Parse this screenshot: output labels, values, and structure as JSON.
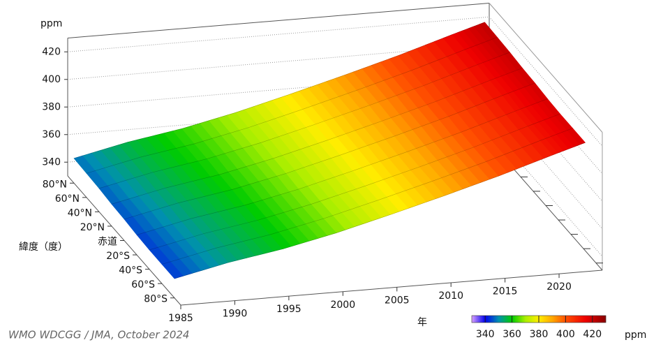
{
  "chart_data": {
    "type": "surface",
    "zlabel": "ppm",
    "xlabel": "年",
    "ylabel": "緯度（度）",
    "credit": "WMO WDCGG / JMA, October 2024",
    "x": [
      1985,
      1990,
      1995,
      2000,
      2005,
      2010,
      2015,
      2020,
      2023
    ],
    "y": [
      80,
      60,
      40,
      20,
      0,
      -20,
      -40,
      -60,
      -80
    ],
    "z": [
      [
        348,
        356.5,
        363,
        371.5,
        381.5,
        392,
        403,
        415,
        422
      ],
      [
        347.5,
        356,
        362.5,
        371,
        381,
        391.5,
        402.5,
        414.5,
        421.5
      ],
      [
        347,
        355.5,
        362,
        370.5,
        380.5,
        391,
        402,
        414,
        421
      ],
      [
        346,
        354.5,
        361,
        369.5,
        379.5,
        390,
        401,
        413,
        420
      ],
      [
        345.5,
        354,
        360.5,
        369,
        379,
        389.5,
        400.5,
        412.5,
        419.5
      ],
      [
        344.5,
        353,
        359.5,
        368,
        378,
        388.5,
        399.5,
        411.5,
        418.5
      ],
      [
        344,
        352.5,
        359,
        367.5,
        377.5,
        388,
        399,
        411,
        418
      ],
      [
        344,
        352.5,
        359,
        367.5,
        377.5,
        388,
        399,
        411,
        418
      ],
      [
        344,
        352.5,
        359,
        367.5,
        377.5,
        388,
        399,
        411,
        418
      ]
    ],
    "xlim": [
      1985,
      2024
    ],
    "xticks": [
      1985,
      1990,
      1995,
      2000,
      2005,
      2010,
      2015,
      2020
    ],
    "ylim": [
      90,
      -90
    ],
    "yticks": [
      {
        "value": 80,
        "label": "80°N"
      },
      {
        "value": 60,
        "label": "60°N"
      },
      {
        "value": 40,
        "label": "40°N"
      },
      {
        "value": 20,
        "label": "20°N"
      },
      {
        "value": 0,
        "label": "赤道"
      },
      {
        "value": -20,
        "label": "20°S"
      },
      {
        "value": -40,
        "label": "40°S"
      },
      {
        "value": -60,
        "label": "60°S"
      },
      {
        "value": -80,
        "label": "80°S"
      }
    ],
    "zlim": [
      330,
      430
    ],
    "zticks": [
      340,
      360,
      380,
      400,
      420
    ],
    "grid": true,
    "colorbar": {
      "label": "ppm",
      "lim": [
        330,
        430
      ],
      "ticks": [
        340,
        360,
        380,
        400,
        420
      ],
      "colormap": [
        {
          "value": 330,
          "color": "#d9a0ff"
        },
        {
          "value": 340,
          "color": "#0000ee"
        },
        {
          "value": 350,
          "color": "#0090b0"
        },
        {
          "value": 360,
          "color": "#00cc00"
        },
        {
          "value": 370,
          "color": "#aaee00"
        },
        {
          "value": 380,
          "color": "#ffee00"
        },
        {
          "value": 390,
          "color": "#ffa800"
        },
        {
          "value": 400,
          "color": "#ff5000"
        },
        {
          "value": 415,
          "color": "#ee0000"
        },
        {
          "value": 430,
          "color": "#880000"
        }
      ]
    }
  }
}
